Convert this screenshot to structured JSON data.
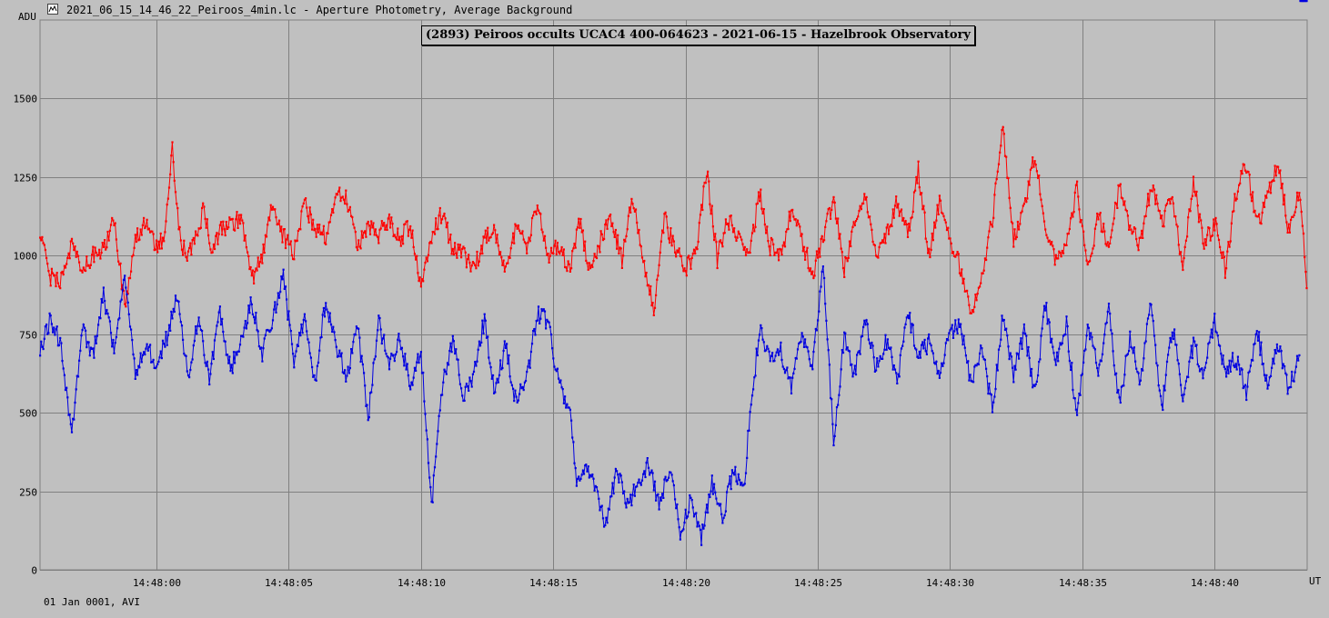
{
  "window": {
    "title": "2021_06_15_14_46_22_Peiroos_4min.lc - Aperture Photometry, Average Background"
  },
  "footer": {
    "date_label": "01 Jan 0001, AVI"
  },
  "chart_data": {
    "type": "line",
    "title": "(2893) Peiroos occults UCAC4 400-064623 - 2021-06-15 - Hazelbrook Observatory",
    "ylabel": "ADU",
    "xlabel": "UT",
    "x_time_start": "14:47:55.6",
    "x_time_end": "14:48:43.5",
    "xlim": [
      -4.4,
      43.5
    ],
    "ylim": [
      0,
      1750
    ],
    "x_ticks": [
      {
        "value": 0,
        "label": "14:48:00"
      },
      {
        "value": 5,
        "label": "14:48:05"
      },
      {
        "value": 10,
        "label": "14:48:10"
      },
      {
        "value": 15,
        "label": "14:48:15"
      },
      {
        "value": 20,
        "label": "14:48:20"
      },
      {
        "value": 25,
        "label": "14:48:25"
      },
      {
        "value": 30,
        "label": "14:48:30"
      },
      {
        "value": 35,
        "label": "14:48:35"
      },
      {
        "value": 40,
        "label": "14:48:40"
      }
    ],
    "y_ticks": [
      0,
      250,
      500,
      750,
      1000,
      1250,
      1500
    ],
    "grid": true,
    "colors": {
      "grid": "#808080",
      "comparison": "#ff0000",
      "target": "#0000e0",
      "background": "#c0c0c0"
    },
    "series": [
      {
        "key": "comparison",
        "color": "#ff0000",
        "knots_x": [
          -4.4,
          -4.0,
          -3.6,
          -3.2,
          -2.8,
          -2.4,
          -2.0,
          -1.6,
          -1.2,
          -0.8,
          -0.4,
          0,
          0.3,
          0.6,
          0.9,
          1.2,
          1.5,
          1.8,
          2.1,
          2.4,
          2.8,
          3.2,
          3.6,
          4.0,
          4.4,
          4.8,
          5.2,
          5.6,
          6.0,
          6.4,
          6.8,
          7.2,
          7.6,
          8.0,
          8.4,
          8.8,
          9.2,
          9.6,
          10.0,
          10.4,
          10.8,
          11.2,
          11.6,
          12.0,
          12.4,
          12.8,
          13.2,
          13.6,
          14.0,
          14.4,
          14.8,
          15.2,
          15.6,
          16.0,
          16.4,
          16.8,
          17.2,
          17.6,
          18.0,
          18.4,
          18.8,
          19.2,
          19.6,
          20.0,
          20.4,
          20.8,
          21.2,
          21.6,
          22.0,
          22.4,
          22.8,
          23.2,
          23.6,
          24.0,
          24.4,
          24.8,
          25.2,
          25.6,
          26.0,
          26.4,
          26.8,
          27.2,
          27.6,
          28.0,
          28.4,
          28.8,
          29.2,
          29.6,
          30.0,
          30.4,
          30.8,
          31.2,
          31.6,
          32.0,
          32.4,
          32.8,
          33.2,
          33.6,
          34.0,
          34.4,
          34.8,
          35.2,
          35.6,
          36.0,
          36.4,
          36.8,
          37.2,
          37.6,
          38.0,
          38.4,
          38.8,
          39.2,
          39.6,
          40.0,
          40.4,
          40.8,
          41.2,
          41.6,
          42.0,
          42.4,
          42.8,
          43.2,
          43.5
        ],
        "knots_y": [
          1080,
          930,
          920,
          1040,
          950,
          1000,
          1020,
          1110,
          840,
          1060,
          1100,
          1030,
          1060,
          1340,
          1050,
          990,
          1070,
          1150,
          1000,
          1080,
          1100,
          1120,
          920,
          1000,
          1170,
          1060,
          1010,
          1160,
          1090,
          1060,
          1200,
          1180,
          1030,
          1100,
          1070,
          1120,
          1050,
          1100,
          900,
          1070,
          1140,
          1020,
          1000,
          960,
          1050,
          1080,
          940,
          1100,
          1020,
          1160,
          1000,
          1040,
          960,
          1110,
          940,
          1050,
          1120,
          980,
          1190,
          1000,
          820,
          1120,
          1020,
          960,
          1010,
          1270,
          990,
          1120,
          1050,
          1000,
          1200,
          1030,
          1000,
          1140,
          1050,
          940,
          1060,
          1180,
          960,
          1110,
          1190,
          1000,
          1070,
          1170,
          1060,
          1270,
          1000,
          1170,
          1050,
          960,
          830,
          930,
          1120,
          1420,
          1050,
          1150,
          1320,
          1100,
          980,
          1060,
          1210,
          950,
          1130,
          1020,
          1220,
          1100,
          1030,
          1230,
          1100,
          1180,
          960,
          1240,
          1030,
          1110,
          950,
          1200,
          1290,
          1100,
          1180,
          1300,
          1080,
          1220,
          900,
          1100,
          1110
        ]
      },
      {
        "key": "target",
        "color": "#0000e0",
        "knots_x": [
          -4.4,
          -4.0,
          -3.6,
          -3.2,
          -2.8,
          -2.4,
          -2.0,
          -1.6,
          -1.2,
          -0.8,
          -0.4,
          0,
          0.4,
          0.8,
          1.2,
          1.6,
          2.0,
          2.4,
          2.8,
          3.2,
          3.6,
          4.0,
          4.4,
          4.8,
          5.2,
          5.6,
          6.0,
          6.4,
          6.8,
          7.2,
          7.6,
          8.0,
          8.4,
          8.8,
          9.2,
          9.6,
          10.0,
          10.4,
          10.8,
          11.2,
          11.6,
          12.0,
          12.4,
          12.8,
          13.2,
          13.6,
          14.0,
          14.4,
          14.8,
          15.2,
          15.6,
          15.9,
          16.2,
          16.6,
          17.0,
          17.4,
          17.8,
          18.2,
          18.6,
          19.0,
          19.4,
          19.8,
          20.2,
          20.6,
          21.0,
          21.4,
          21.8,
          22.2,
          22.5,
          22.8,
          23.2,
          23.6,
          24.0,
          24.4,
          24.8,
          25.2,
          25.6,
          26.0,
          26.4,
          26.8,
          27.2,
          27.6,
          28.0,
          28.4,
          28.8,
          29.2,
          29.6,
          30.0,
          30.4,
          30.8,
          31.2,
          31.6,
          32.0,
          32.4,
          32.8,
          33.2,
          33.6,
          34.0,
          34.4,
          34.8,
          35.2,
          35.6,
          36.0,
          36.4,
          36.8,
          37.2,
          37.6,
          38.0,
          38.4,
          38.8,
          39.2,
          39.6,
          40.0,
          40.4,
          40.8,
          41.2,
          41.6,
          42.0,
          42.4,
          42.8,
          43.2,
          43.5
        ],
        "knots_y": [
          700,
          800,
          720,
          420,
          760,
          680,
          880,
          700,
          960,
          630,
          720,
          650,
          740,
          880,
          600,
          820,
          600,
          820,
          640,
          720,
          860,
          690,
          800,
          950,
          640,
          820,
          600,
          860,
          700,
          620,
          780,
          480,
          790,
          650,
          740,
          580,
          700,
          200,
          580,
          730,
          560,
          620,
          800,
          560,
          720,
          530,
          610,
          820,
          790,
          600,
          520,
          280,
          320,
          260,
          140,
          330,
          200,
          280,
          340,
          200,
          330,
          120,
          230,
          100,
          280,
          170,
          310,
          260,
          550,
          760,
          660,
          700,
          580,
          760,
          640,
          980,
          400,
          740,
          620,
          800,
          640,
          730,
          600,
          820,
          680,
          720,
          600,
          760,
          780,
          590,
          700,
          510,
          820,
          620,
          760,
          560,
          840,
          650,
          780,
          480,
          760,
          640,
          820,
          520,
          750,
          600,
          860,
          500,
          780,
          560,
          720,
          620,
          800,
          620,
          680,
          560,
          760,
          600,
          720,
          560,
          700
        ]
      }
    ]
  }
}
